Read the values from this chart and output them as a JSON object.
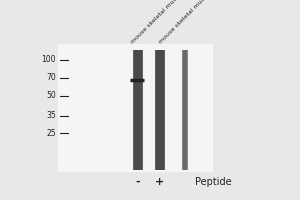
{
  "bg_color": "#e8e8e8",
  "white_color": "#ffffff",
  "lane_color": "#4a4a4a",
  "band_color": "#222222",
  "text_color": "#222222",
  "ladder_marks": [
    100,
    70,
    50,
    35,
    25
  ],
  "ladder_labels": [
    "100",
    "70",
    "50",
    "35",
    "25"
  ],
  "col_labels": [
    "-",
    "+"
  ],
  "peptide_label": "Peptide",
  "col_headers": [
    "mouse skeletal muscle",
    "mouse skeletal muscle"
  ],
  "fig_width": 3.0,
  "fig_height": 2.0,
  "dpi": 100
}
